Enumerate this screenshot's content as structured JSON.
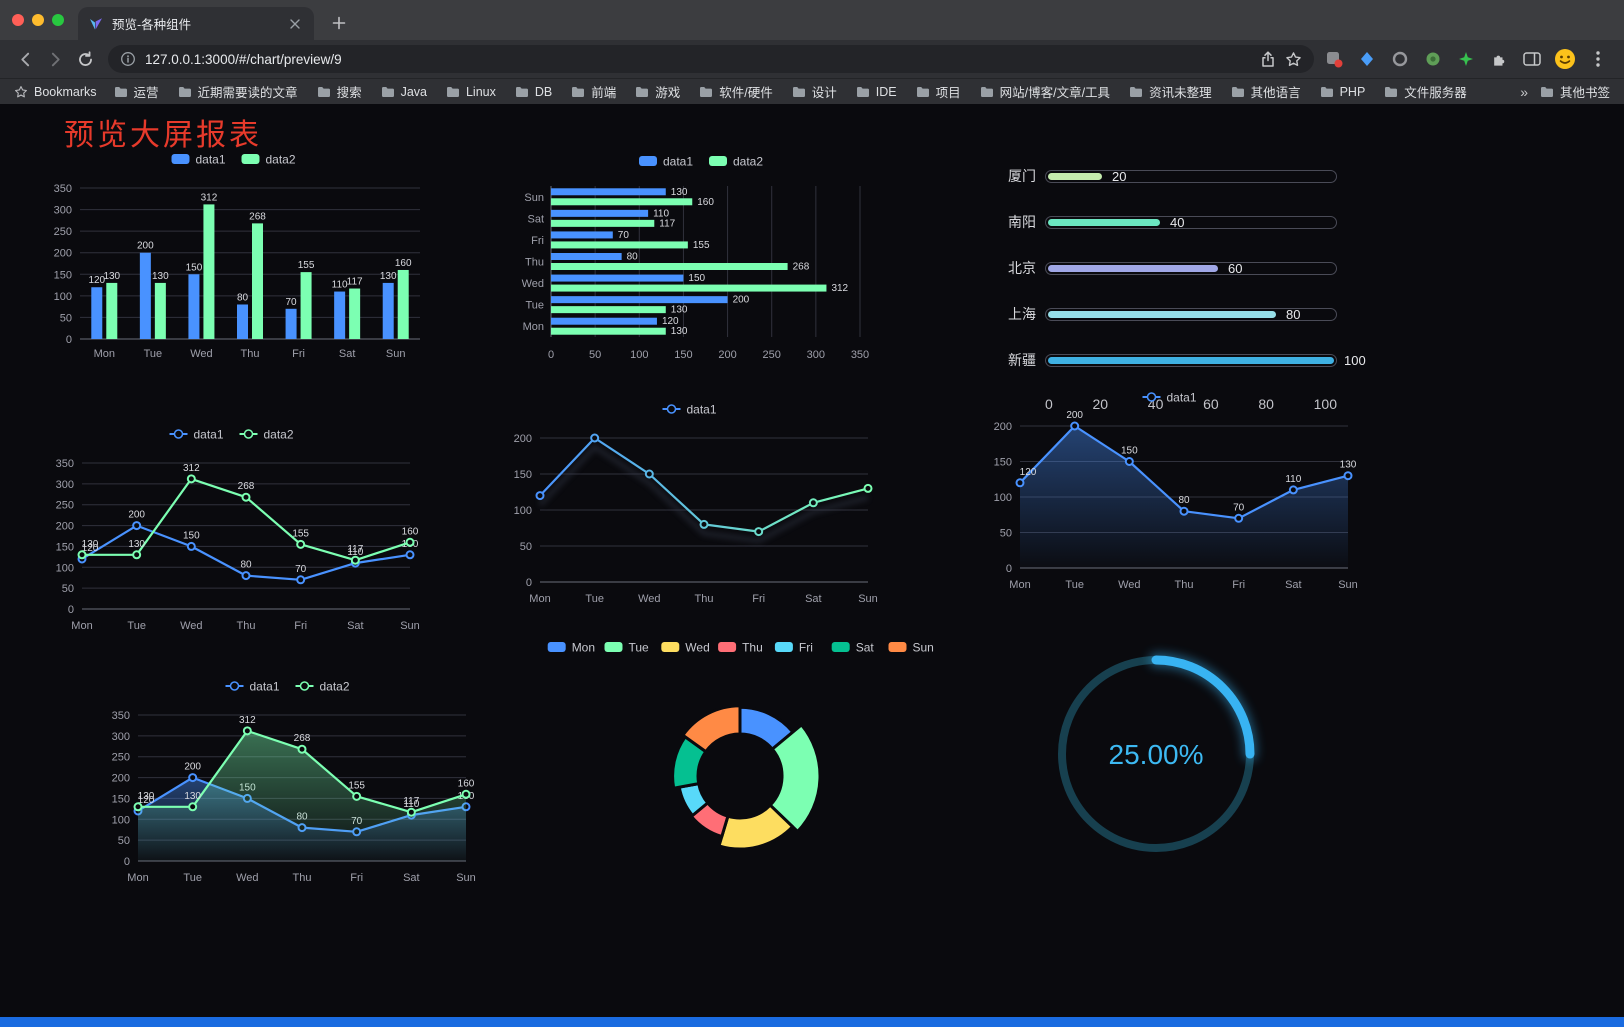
{
  "browser": {
    "tab_title": "预览-各种组件",
    "url": "127.0.0.1:3000/#/chart/preview/9",
    "bookmarks_label": "Bookmarks",
    "bookmarks": [
      "运营",
      "近期需要读的文章",
      "搜索",
      "Java",
      "Linux",
      "DB",
      "前端",
      "游戏",
      "软件/硬件",
      "设计",
      "IDE",
      "项目",
      "网站/博客/文章/工具",
      "资讯未整理",
      "其他语言",
      "PHP",
      "文件服务器"
    ],
    "overflow_chevron": "»",
    "other_bookmarks": "其他书签"
  },
  "page": {
    "title": "预览大屏报表",
    "title_color": "#e73a2b",
    "accent_color": "#1a6be0"
  },
  "chart_data": [
    {
      "id": "bar-vertical",
      "type": "bar",
      "categories": [
        "Mon",
        "Tue",
        "Wed",
        "Thu",
        "Fri",
        "Sat",
        "Sun"
      ],
      "series": [
        {
          "name": "data1",
          "color": "#4992ff",
          "values": [
            120,
            200,
            150,
            80,
            70,
            110,
            130
          ]
        },
        {
          "name": "data2",
          "color": "#7cffb2",
          "values": [
            130,
            130,
            312,
            268,
            155,
            117,
            160
          ]
        }
      ],
      "ylim": [
        0,
        350
      ],
      "ytick": 50,
      "legend_position": "top",
      "grid": true
    },
    {
      "id": "bar-horizontal",
      "type": "bar-horizontal",
      "categories": [
        "Mon",
        "Tue",
        "Wed",
        "Thu",
        "Fri",
        "Sat",
        "Sun"
      ],
      "series": [
        {
          "name": "data1",
          "color": "#4992ff",
          "values": [
            120,
            200,
            150,
            80,
            70,
            110,
            130
          ]
        },
        {
          "name": "data2",
          "color": "#7cffb2",
          "values": [
            130,
            130,
            312,
            268,
            155,
            117,
            160
          ]
        }
      ],
      "xlim": [
        0,
        350
      ],
      "xtick": 50,
      "legend_position": "top",
      "grid": true
    },
    {
      "id": "capsule",
      "type": "bar-capsule",
      "rows": [
        {
          "label": "厦门",
          "value": 20,
          "color": "#c4ebad"
        },
        {
          "label": "南阳",
          "value": 40,
          "color": "#6be6c1"
        },
        {
          "label": "北京",
          "value": 60,
          "color": "#a0a7e6"
        },
        {
          "label": "上海",
          "value": 80,
          "color": "#96dee8"
        },
        {
          "label": "新疆",
          "value": 100,
          "color": "#3fb1e3"
        }
      ],
      "xlim": [
        0,
        100
      ],
      "axis_ticks": [
        0,
        20,
        40,
        60,
        80,
        100
      ]
    },
    {
      "id": "line-dual",
      "type": "line",
      "categories": [
        "Mon",
        "Tue",
        "Wed",
        "Thu",
        "Fri",
        "Sat",
        "Sun"
      ],
      "series": [
        {
          "name": "data1",
          "color": "#4992ff",
          "values": [
            120,
            200,
            150,
            80,
            70,
            110,
            130
          ],
          "labels": true
        },
        {
          "name": "data2",
          "color": "#7cffb2",
          "values": [
            130,
            130,
            312,
            268,
            155,
            117,
            160
          ],
          "labels": true
        }
      ],
      "ylim": [
        0,
        350
      ],
      "ytick": 50,
      "legend_position": "top"
    },
    {
      "id": "line-gradient",
      "type": "line",
      "categories": [
        "Mon",
        "Tue",
        "Wed",
        "Thu",
        "Fri",
        "Sat",
        "Sun"
      ],
      "series": [
        {
          "name": "data1",
          "gradient": [
            "#4992ff",
            "#7cffb2"
          ],
          "values": [
            120,
            200,
            150,
            80,
            70,
            110,
            130
          ],
          "labels": false,
          "shadow": true
        }
      ],
      "ylim": [
        0,
        200
      ],
      "ytick": 50,
      "legend_position": "top"
    },
    {
      "id": "line-area",
      "type": "line",
      "categories": [
        "Mon",
        "Tue",
        "Wed",
        "Thu",
        "Fri",
        "Sat",
        "Sun"
      ],
      "series": [
        {
          "name": "data1",
          "color": "#4992ff",
          "values": [
            120,
            200,
            150,
            80,
            70,
            110,
            130
          ],
          "labels": true,
          "area": true
        }
      ],
      "ylim": [
        0,
        200
      ],
      "ytick": 50,
      "legend_position": "top"
    },
    {
      "id": "line-dual-area",
      "type": "line",
      "categories": [
        "Mon",
        "Tue",
        "Wed",
        "Thu",
        "Fri",
        "Sat",
        "Sun"
      ],
      "series": [
        {
          "name": "data1",
          "color": "#4992ff",
          "values": [
            120,
            200,
            150,
            80,
            70,
            110,
            130
          ],
          "labels": true,
          "area": true
        },
        {
          "name": "data2",
          "color": "#7cffb2",
          "values": [
            130,
            130,
            312,
            268,
            155,
            117,
            160
          ],
          "labels": true,
          "area": true
        }
      ],
      "ylim": [
        0,
        350
      ],
      "ytick": 50,
      "legend_position": "top"
    },
    {
      "id": "pie-rose",
      "type": "pie",
      "rose": true,
      "labels": [
        "Mon",
        "Tue",
        "Wed",
        "Thu",
        "Fri",
        "Sat",
        "Sun"
      ],
      "values": [
        120,
        200,
        150,
        80,
        70,
        110,
        130
      ],
      "colors": [
        "#4992ff",
        "#7cffb2",
        "#fddd60",
        "#ff6e76",
        "#58d9f9",
        "#05c091",
        "#ff8a45"
      ],
      "legend_position": "top"
    },
    {
      "id": "gauge",
      "type": "gauge",
      "value": 25,
      "label": "25.00%",
      "color": "#38b3f2",
      "track_color": "#17404f"
    }
  ]
}
